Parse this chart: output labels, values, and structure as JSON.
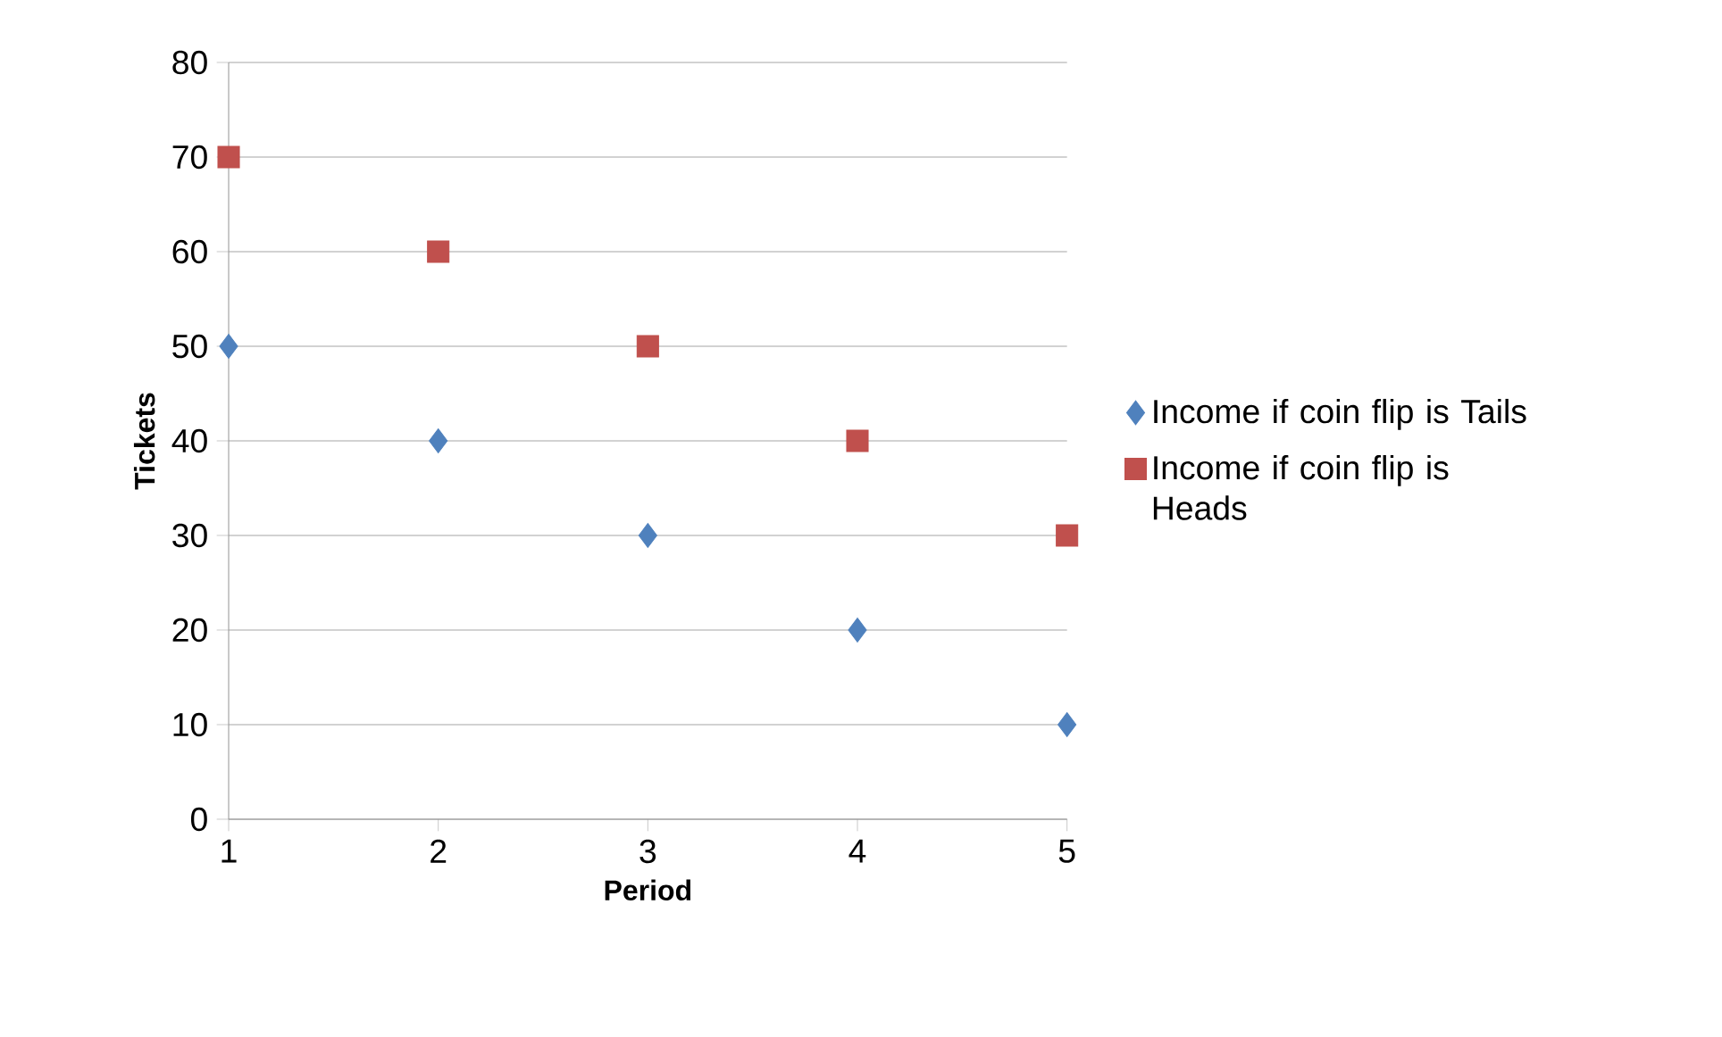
{
  "chart_data": {
    "type": "scatter",
    "xlabel": "Period",
    "ylabel": "Tickets",
    "x": [
      1,
      2,
      3,
      4,
      5
    ],
    "xlim": [
      1,
      5
    ],
    "xticks": [
      1,
      2,
      3,
      4,
      5
    ],
    "ylim": [
      0,
      80
    ],
    "yticks": [
      0,
      10,
      20,
      30,
      40,
      50,
      60,
      70,
      80
    ],
    "grid": "y",
    "legend": "right",
    "series": [
      {
        "name": "Income if coin flip is Tails",
        "color": "#4f81bd",
        "marker": "diamond",
        "values": [
          50,
          40,
          30,
          20,
          10
        ]
      },
      {
        "name": "Income if coin flip is Heads",
        "color": "#c0504d",
        "marker": "square",
        "values": [
          70,
          60,
          50,
          40,
          30
        ]
      }
    ]
  }
}
